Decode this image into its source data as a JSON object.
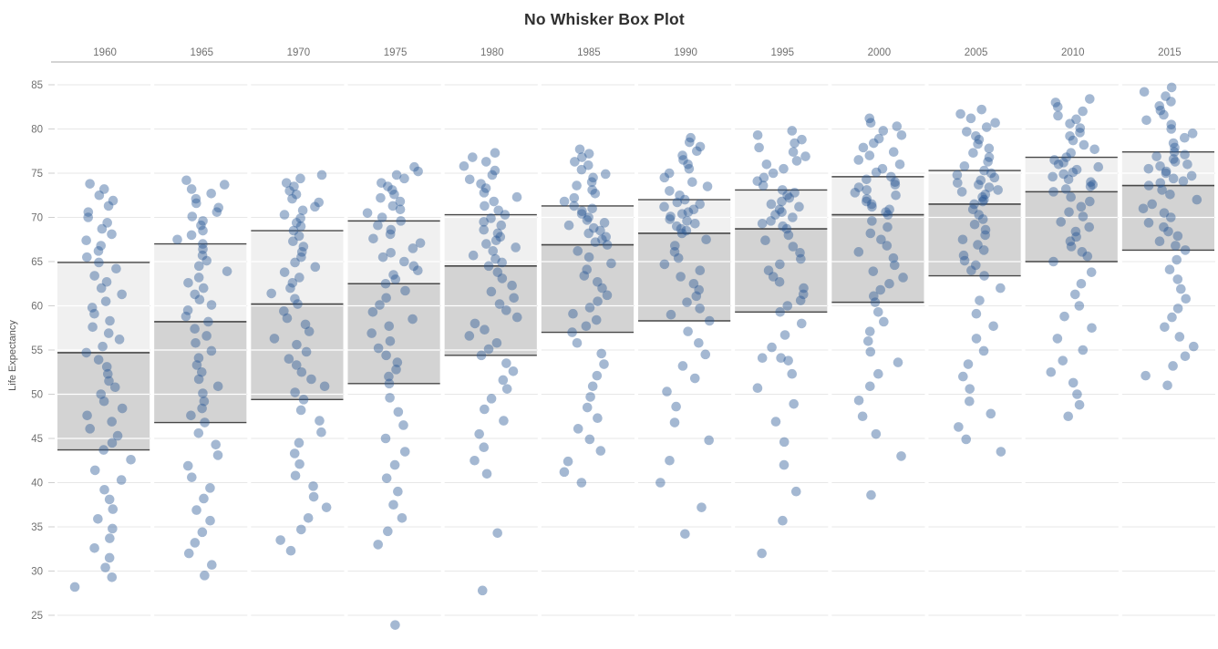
{
  "page": {
    "app": "tableau-style-visualization",
    "title": "No Whisker Box Plot"
  },
  "axes": {
    "y_label": "Life Expectancy",
    "y_ticks": [
      85,
      80,
      75,
      70,
      65,
      60,
      55,
      50,
      45,
      40,
      35,
      30,
      25
    ],
    "column_headers": [
      "1960",
      "1965",
      "1970",
      "1975",
      "1980",
      "1985",
      "1990",
      "1995",
      "2000",
      "2005",
      "2010",
      "2015"
    ]
  },
  "colors": {
    "dot": "#265694",
    "dot_opacity": 0.42,
    "box_upper": "#f0f0f0",
    "box_lower": "#d3d3d3",
    "box_border": "#474747",
    "grid": "#e7e7e7",
    "grid_on_box": "#ffffff",
    "header_line": "#a8a8a8",
    "tick": "#cfcfcf",
    "label": "#707070",
    "title": "#2f2f2f"
  },
  "chart_data": {
    "type": "scatter",
    "subtype": "no-whisker-box-plot-with-jittered-points",
    "title": "No Whisker Box Plot",
    "xlabel": "",
    "ylabel": "Life Expectancy",
    "ylim": [
      21,
      86
    ],
    "y_ticks": [
      85,
      80,
      75,
      70,
      65,
      60,
      55,
      50,
      45,
      40,
      35,
      30,
      25
    ],
    "grid": true,
    "legend": "none",
    "categories": [
      "1960",
      "1965",
      "1970",
      "1975",
      "1980",
      "1985",
      "1990",
      "1995",
      "2000",
      "2005",
      "2010",
      "2015"
    ],
    "boxes": [
      {
        "year": "1960",
        "min": 28.2,
        "q1": 43.7,
        "median": 54.7,
        "q3": 64.9,
        "max": 73.8,
        "points": [
          28.2,
          29.3,
          30.4,
          31.5,
          32.6,
          33.7,
          34.8,
          35.9,
          37,
          38.1,
          39.2,
          40.3,
          41.4,
          42.6,
          43.7,
          44.5,
          45.3,
          46.1,
          46.9,
          47.6,
          48.4,
          49.2,
          50,
          50.8,
          51.5,
          52.3,
          53.1,
          53.9,
          54.7,
          55.4,
          56.2,
          56.9,
          57.6,
          58.3,
          59.1,
          59.8,
          60.5,
          61.3,
          62,
          62.7,
          63.4,
          64.2,
          64.9,
          65.5,
          66.2,
          66.8,
          67.4,
          68.1,
          68.7,
          69.4,
          70,
          70.6,
          71.3,
          71.9,
          72.5,
          73.2,
          73.8
        ]
      },
      {
        "year": "1965",
        "min": 29.5,
        "q1": 46.8,
        "median": 58.2,
        "q3": 67.0,
        "max": 74.2,
        "points": [
          29.5,
          30.7,
          32,
          33.2,
          34.4,
          35.7,
          36.9,
          38.2,
          39.4,
          40.6,
          41.9,
          43.1,
          44.3,
          45.6,
          46.8,
          47.6,
          48.4,
          49.2,
          50.1,
          50.9,
          51.7,
          52.5,
          53.3,
          54.1,
          54.9,
          55.8,
          56.6,
          57.4,
          58.2,
          58.8,
          59.5,
          60.1,
          60.7,
          61.3,
          62,
          62.6,
          63.2,
          63.9,
          64.5,
          65.1,
          65.7,
          66.4,
          67,
          67.5,
          68,
          68.5,
          69.1,
          69.6,
          70.1,
          70.6,
          71.1,
          71.6,
          72.1,
          72.7,
          73.2,
          73.7,
          74.2
        ]
      },
      {
        "year": "1970",
        "min": 32.3,
        "q1": 49.4,
        "median": 60.2,
        "q3": 68.5,
        "max": 74.8,
        "points": [
          32.3,
          33.5,
          34.7,
          36,
          37.2,
          38.4,
          39.6,
          40.8,
          42.1,
          43.3,
          44.5,
          45.7,
          47,
          48.2,
          49.4,
          50.2,
          50.9,
          51.7,
          52.5,
          53.3,
          54,
          54.8,
          55.6,
          56.3,
          57.1,
          57.9,
          58.6,
          59.4,
          60.2,
          60.8,
          61.4,
          62,
          62.6,
          63.2,
          63.8,
          64.4,
          64.9,
          65.5,
          66.1,
          66.7,
          67.3,
          67.9,
          68.5,
          69,
          69.4,
          69.9,
          70.3,
          70.8,
          71.2,
          71.7,
          72.1,
          72.6,
          73,
          73.5,
          73.9,
          74.4,
          74.8
        ]
      },
      {
        "year": "1975",
        "min": 23.9,
        "q1": 51.2,
        "median": 62.5,
        "q3": 69.6,
        "max": 75.7,
        "points": [
          23.9,
          33,
          34.5,
          36,
          37.5,
          39,
          40.5,
          42,
          43.5,
          45,
          46.5,
          48,
          49.6,
          51.2,
          52,
          52.8,
          53.6,
          54.4,
          55.2,
          56,
          56.9,
          57.7,
          58.5,
          59.3,
          60.1,
          60.9,
          61.7,
          62.5,
          63,
          63.5,
          64,
          64.5,
          65,
          65.5,
          66,
          66.5,
          67.1,
          67.6,
          68.1,
          68.6,
          69.1,
          69.6,
          70,
          70.5,
          70.9,
          71.3,
          71.8,
          72.2,
          72.6,
          73.1,
          73.5,
          73.9,
          74.4,
          74.8,
          75.2,
          75.7
        ]
      },
      {
        "year": "1980",
        "min": 27.8,
        "q1": 54.4,
        "median": 64.5,
        "q3": 70.3,
        "max": 77.3,
        "points": [
          27.8,
          34.3,
          41,
          42.5,
          44,
          45.5,
          47,
          48.3,
          49.5,
          50.6,
          51.6,
          52.6,
          53.5,
          54.4,
          55.1,
          55.8,
          56.6,
          57.3,
          58,
          58.7,
          59.5,
          60.2,
          60.9,
          61.6,
          62.3,
          63.1,
          63.8,
          64.5,
          64.9,
          65.3,
          65.7,
          66.2,
          66.6,
          67,
          67.4,
          67.8,
          68.2,
          68.6,
          69.1,
          69.5,
          69.9,
          70.3,
          70.8,
          71.3,
          71.8,
          72.3,
          72.8,
          73.3,
          73.8,
          74.3,
          74.8,
          75.3,
          75.8,
          76.3,
          76.8,
          77.3
        ]
      },
      {
        "year": "1985",
        "min": 40.0,
        "q1": 57.0,
        "median": 66.9,
        "q3": 71.3,
        "max": 77.7,
        "points": [
          40,
          41.2,
          42.4,
          43.6,
          44.9,
          46.1,
          47.3,
          48.5,
          49.7,
          50.9,
          52.1,
          53.4,
          54.6,
          55.8,
          57,
          57.7,
          58.4,
          59.1,
          59.8,
          60.5,
          61.2,
          62,
          62.7,
          63.4,
          64.1,
          64.8,
          65.5,
          66.2,
          66.9,
          67.2,
          67.5,
          67.8,
          68.2,
          68.5,
          68.8,
          69.1,
          69.4,
          69.7,
          70,
          70.4,
          70.7,
          71,
          71.3,
          71.8,
          72.2,
          72.7,
          73.1,
          73.6,
          74,
          74.5,
          74.9,
          75.4,
          75.9,
          76.3,
          76.8,
          77.2,
          77.7
        ]
      },
      {
        "year": "1990",
        "min": 34.2,
        "q1": 58.3,
        "median": 68.2,
        "q3": 72.0,
        "max": 79.0,
        "points": [
          34.2,
          37.2,
          40,
          42.5,
          44.8,
          46.8,
          48.6,
          50.3,
          51.8,
          53.2,
          54.5,
          55.8,
          57.1,
          58.3,
          59,
          59.7,
          60.4,
          61.1,
          61.8,
          62.5,
          63.3,
          64,
          64.7,
          65.4,
          66.1,
          66.8,
          67.5,
          68.2,
          68.5,
          68.7,
          69,
          69.3,
          69.6,
          69.8,
          70.1,
          70.4,
          70.6,
          70.9,
          71.2,
          71.5,
          71.7,
          72,
          72.5,
          73,
          73.5,
          74,
          74.5,
          75,
          75.5,
          76,
          76.5,
          77,
          77.5,
          78,
          78.5,
          79
        ]
      },
      {
        "year": "1995",
        "min": 32.0,
        "q1": 59.3,
        "median": 68.7,
        "q3": 73.1,
        "max": 79.8,
        "points": [
          32,
          35.7,
          39,
          42,
          44.6,
          46.9,
          48.9,
          50.7,
          52.3,
          53.8,
          54.1,
          54.1,
          55.3,
          56.7,
          58,
          59.3,
          60,
          60.6,
          61.3,
          62,
          62.7,
          63.3,
          64,
          64.7,
          65.3,
          66,
          66.7,
          67.4,
          68,
          68.7,
          69,
          69.3,
          69.6,
          70,
          70.3,
          70.6,
          70.9,
          71.2,
          71.5,
          71.8,
          72.2,
          72.5,
          72.8,
          73.1,
          73.6,
          74.1,
          74.5,
          75,
          75.5,
          76,
          76.4,
          76.9,
          77.4,
          77.9,
          78.4,
          78.8,
          79.3,
          79.8
        ]
      },
      {
        "year": "2000",
        "min": 38.6,
        "q1": 60.4,
        "median": 70.3,
        "q3": 74.6,
        "max": 81.2,
        "points": [
          38.6,
          43,
          45.5,
          47.5,
          49.3,
          50.9,
          52.3,
          53.6,
          54.8,
          56,
          57.1,
          58.2,
          59.3,
          60.4,
          61.1,
          61.8,
          62.5,
          63.2,
          63.9,
          64.6,
          65.4,
          66.1,
          66.8,
          67.5,
          68.2,
          68.9,
          69.6,
          70.3,
          70.6,
          70.9,
          71.2,
          71.5,
          71.8,
          72.1,
          72.5,
          72.8,
          73.1,
          73.4,
          73.7,
          74,
          74.3,
          74.6,
          75.1,
          75.5,
          76,
          76.5,
          77,
          77.4,
          77.9,
          78.4,
          78.9,
          79.3,
          79.8,
          80.3,
          80.7,
          81.2
        ]
      },
      {
        "year": "2005",
        "min": 43.5,
        "q1": 63.4,
        "median": 71.5,
        "q3": 75.3,
        "max": 82.2,
        "points": [
          43.5,
          44.9,
          46.3,
          47.8,
          49.2,
          50.6,
          52,
          53.4,
          54.9,
          56.3,
          57.7,
          59.1,
          60.6,
          62,
          63.4,
          64,
          64.6,
          65.1,
          65.7,
          66.3,
          66.9,
          67.5,
          68,
          68.6,
          69.2,
          69.8,
          70.3,
          70.9,
          71.5,
          71.8,
          72,
          72.3,
          72.6,
          72.9,
          73.1,
          73.4,
          73.7,
          73.9,
          74.2,
          74.5,
          74.8,
          75,
          75.3,
          75.8,
          76.3,
          76.8,
          77.3,
          77.8,
          78.3,
          78.8,
          79.2,
          79.7,
          80.2,
          80.7,
          81.2,
          81.7,
          82.2
        ]
      },
      {
        "year": "2010",
        "min": 47.5,
        "q1": 65.0,
        "median": 72.9,
        "q3": 76.8,
        "max": 83.4,
        "points": [
          47.5,
          48.8,
          50,
          51.3,
          52.5,
          53.8,
          55,
          56.3,
          57.5,
          58.8,
          60,
          61.3,
          62.5,
          63.8,
          65,
          65.6,
          66.1,
          66.7,
          67.3,
          67.8,
          68.4,
          68.9,
          69.5,
          70.1,
          70.6,
          71.2,
          71.8,
          72.3,
          72.9,
          73.2,
          73.5,
          73.7,
          74,
          74.3,
          74.6,
          74.9,
          75.1,
          75.4,
          75.7,
          76,
          76.2,
          76.5,
          76.8,
          77.3,
          77.7,
          78.2,
          78.7,
          79.2,
          79.6,
          80.1,
          80.6,
          81.1,
          81.5,
          82,
          82.5,
          83,
          83.4
        ]
      },
      {
        "year": "2015",
        "min": 51.0,
        "q1": 66.3,
        "median": 73.6,
        "q3": 77.4,
        "max": 84.7,
        "points": [
          51,
          52.1,
          53.2,
          54.3,
          55.4,
          56.5,
          57.6,
          58.7,
          59.7,
          60.8,
          61.9,
          63,
          64.1,
          65.2,
          66.3,
          66.8,
          67.3,
          67.9,
          68.4,
          68.9,
          69.4,
          70,
          70.5,
          71,
          71.5,
          72,
          72.6,
          73.1,
          73.6,
          73.9,
          74.1,
          74.4,
          74.7,
          75,
          75.2,
          75.5,
          75.8,
          76,
          76.3,
          76.6,
          76.9,
          77.1,
          77.4,
          77.9,
          78.4,
          79,
          79.5,
          80,
          80.5,
          81,
          81.6,
          82.1,
          82.6,
          83.1,
          83.7,
          84.2,
          84.7
        ]
      }
    ]
  }
}
